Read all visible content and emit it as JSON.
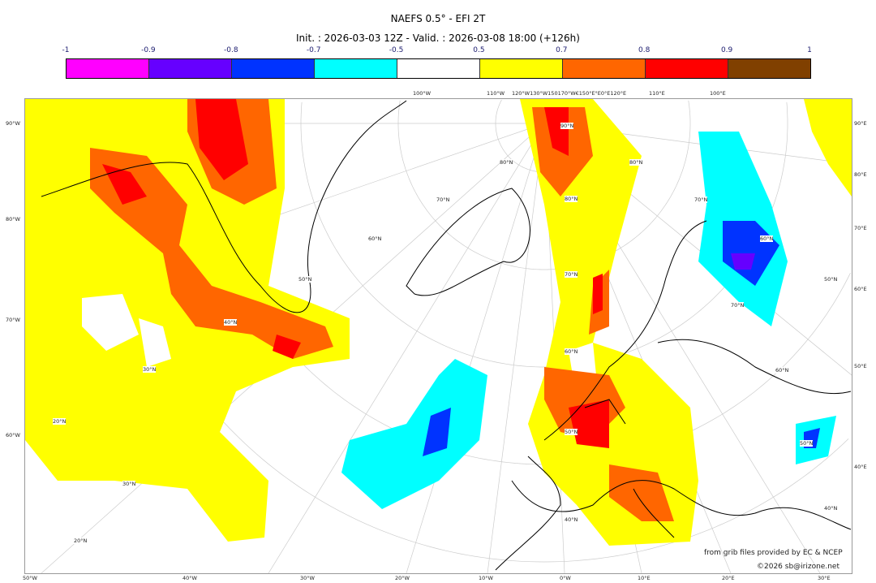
{
  "title": "NAEFS 0.5° - EFI 2T",
  "subtitle": "Init. : 2026-03-03 12Z - Valid. : 2026-03-08 18:00 (+126h)",
  "colorbar": {
    "ticks": [
      "-1",
      "-0.9",
      "-0.8",
      "-0.7",
      "-0.5",
      "0.5",
      "0.7",
      "0.8",
      "0.9",
      "1"
    ],
    "colors": [
      "#ff00ff",
      "#6600ff",
      "#0033ff",
      "#00ffff",
      "#ffffff",
      "#ffff00",
      "#ff6600",
      "#ff0000",
      "#804000"
    ]
  },
  "map": {
    "top_labels": [
      "100°W",
      "110°W",
      "120°W130°W150170°W€150°E°E0°E120°E",
      "110°E",
      "100°E"
    ],
    "left_labels": [
      "90°W",
      "80°W",
      "70°W",
      "60°W"
    ],
    "right_labels": [
      "90°E",
      "80°E",
      "70°E",
      "60°E",
      "50°E",
      "40°E"
    ],
    "bottom_labels": [
      "50°W",
      "40°W",
      "30°W",
      "20°W",
      "10°W",
      "0°W",
      "10°E",
      "20°E",
      "30°E"
    ],
    "lat_labels": [
      "90°N",
      "80°N",
      "70°N",
      "60°N",
      "50°N",
      "40°N",
      "30°N",
      "20°N"
    ],
    "inner_labels": [
      "80°N",
      "70°N",
      "60°N",
      "50°N",
      "40°N",
      "30°N",
      "20°N",
      "70°N",
      "60°N",
      "50°N",
      "40°N",
      "80°N",
      "70°N",
      "60°N",
      "50°N"
    ]
  },
  "credits": {
    "source": "from grib files provided by EC & NCEP",
    "copyright": "©2026 sb@irizone.net"
  }
}
